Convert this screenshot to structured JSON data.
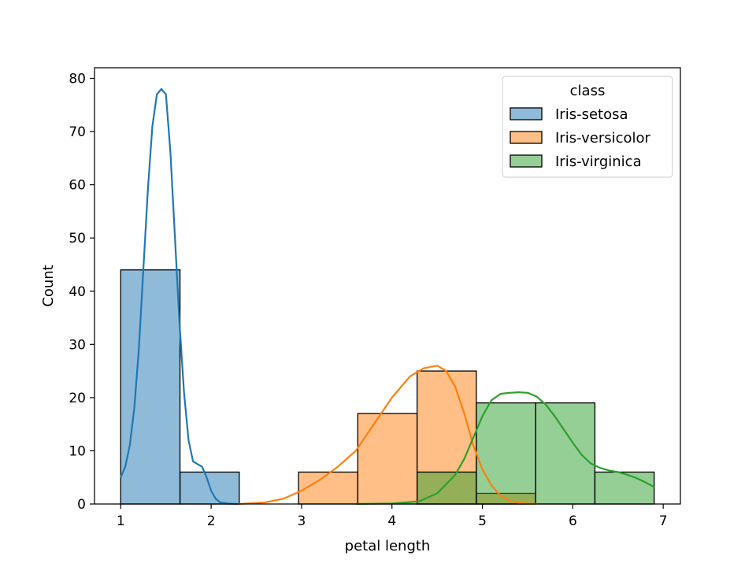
{
  "chart_data": {
    "type": "histogram",
    "xlabel": "petal length",
    "ylabel": "Count",
    "xlim": [
      0.71,
      7.19
    ],
    "ylim": [
      0,
      82
    ],
    "xticks": [
      1,
      2,
      3,
      4,
      5,
      6,
      7
    ],
    "yticks": [
      0,
      10,
      20,
      30,
      40,
      50,
      60,
      70,
      80
    ],
    "bin_edges": [
      1.0,
      1.6556,
      2.3111,
      2.9667,
      3.6222,
      4.2778,
      4.9333,
      5.5889,
      6.2444,
      6.9
    ],
    "legend": {
      "title": "class",
      "placement": "upper right"
    },
    "series": [
      {
        "name": "Iris-setosa",
        "color": "#1f77b4",
        "counts": [
          44,
          6,
          0,
          0,
          0,
          0,
          0,
          0,
          0
        ],
        "kde": [
          [
            1.0,
            5
          ],
          [
            1.05,
            7
          ],
          [
            1.1,
            11
          ],
          [
            1.15,
            18
          ],
          [
            1.2,
            29
          ],
          [
            1.25,
            44
          ],
          [
            1.3,
            59
          ],
          [
            1.35,
            71
          ],
          [
            1.4,
            77
          ],
          [
            1.45,
            78
          ],
          [
            1.5,
            77
          ],
          [
            1.55,
            66
          ],
          [
            1.6,
            50
          ],
          [
            1.65,
            34
          ],
          [
            1.7,
            21
          ],
          [
            1.75,
            12
          ],
          [
            1.8,
            8
          ],
          [
            1.85,
            7.5
          ],
          [
            1.9,
            7
          ],
          [
            1.95,
            5
          ],
          [
            2.0,
            2.5
          ],
          [
            2.05,
            1
          ],
          [
            2.1,
            0.3
          ],
          [
            2.2,
            0.05
          ],
          [
            2.3,
            0
          ]
        ]
      },
      {
        "name": "Iris-versicolor",
        "color": "#ff7f0e",
        "counts": [
          0,
          0,
          0,
          6,
          17,
          25,
          2,
          0,
          0
        ],
        "kde": [
          [
            2.3,
            0
          ],
          [
            2.6,
            0.3
          ],
          [
            2.8,
            1
          ],
          [
            3.0,
            2.5
          ],
          [
            3.2,
            4.5
          ],
          [
            3.4,
            7
          ],
          [
            3.6,
            10
          ],
          [
            3.8,
            15
          ],
          [
            4.0,
            20
          ],
          [
            4.2,
            24
          ],
          [
            4.35,
            25.5
          ],
          [
            4.5,
            26
          ],
          [
            4.6,
            25
          ],
          [
            4.7,
            22
          ],
          [
            4.8,
            17
          ],
          [
            4.9,
            11
          ],
          [
            5.0,
            6.5
          ],
          [
            5.1,
            3.5
          ],
          [
            5.2,
            1.6
          ],
          [
            5.3,
            0.6
          ],
          [
            5.4,
            0.2
          ],
          [
            5.5,
            0.05
          ],
          [
            5.6,
            0
          ]
        ]
      },
      {
        "name": "Iris-virginica",
        "color": "#2ca02c",
        "counts": [
          0,
          0,
          0,
          0,
          0,
          6,
          19,
          19,
          6
        ],
        "kde": [
          [
            3.6,
            0
          ],
          [
            4.0,
            0.1
          ],
          [
            4.3,
            0.5
          ],
          [
            4.5,
            2
          ],
          [
            4.7,
            5.5
          ],
          [
            4.8,
            8.5
          ],
          [
            4.9,
            12.5
          ],
          [
            5.0,
            16.5
          ],
          [
            5.1,
            19.5
          ],
          [
            5.2,
            20.7
          ],
          [
            5.3,
            20.9
          ],
          [
            5.4,
            21
          ],
          [
            5.5,
            20.9
          ],
          [
            5.6,
            20.2
          ],
          [
            5.7,
            18.7
          ],
          [
            5.8,
            16.5
          ],
          [
            5.9,
            14
          ],
          [
            6.0,
            11.5
          ],
          [
            6.1,
            9.2
          ],
          [
            6.2,
            7.6
          ],
          [
            6.3,
            6.8
          ],
          [
            6.4,
            6.3
          ],
          [
            6.5,
            6
          ],
          [
            6.6,
            5.5
          ],
          [
            6.7,
            4.9
          ],
          [
            6.8,
            4.1
          ],
          [
            6.9,
            3.2
          ]
        ]
      }
    ]
  }
}
